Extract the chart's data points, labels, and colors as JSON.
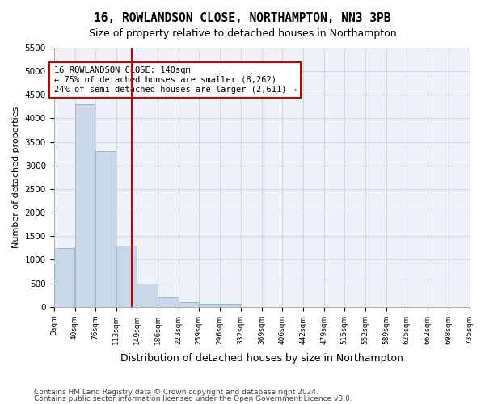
{
  "title": "16, ROWLANDSON CLOSE, NORTHAMPTON, NN3 3PB",
  "subtitle": "Size of property relative to detached houses in Northampton",
  "xlabel": "Distribution of detached houses by size in Northampton",
  "ylabel": "Number of detached properties",
  "footer_line1": "Contains HM Land Registry data © Crown copyright and database right 2024.",
  "footer_line2": "Contains public sector information licensed under the Open Government Licence v3.0.",
  "annotation_title": "16 ROWLANDSON CLOSE: 140sqm",
  "annotation_line1": "← 75% of detached houses are smaller (8,262)",
  "annotation_line2": "24% of semi-detached houses are larger (2,611) →",
  "property_size": 140,
  "bar_color": "#c8d8e8",
  "bar_edge_color": "#a0b8cc",
  "vline_color": "#cc0000",
  "annotation_box_color": "#cc0000",
  "categories": [
    "3sqm",
    "40sqm",
    "76sqm",
    "113sqm",
    "149sqm",
    "186sqm",
    "223sqm",
    "259sqm",
    "296sqm",
    "332sqm",
    "369sqm",
    "406sqm",
    "442sqm",
    "479sqm",
    "515sqm",
    "552sqm",
    "589sqm",
    "625sqm",
    "662sqm",
    "698sqm",
    "735sqm"
  ],
  "bin_edges": [
    3,
    40,
    76,
    113,
    149,
    186,
    223,
    259,
    296,
    332,
    369,
    406,
    442,
    479,
    515,
    552,
    589,
    625,
    662,
    698,
    735
  ],
  "bar_heights": [
    1250,
    4300,
    3300,
    1300,
    500,
    200,
    100,
    60,
    60,
    0,
    0,
    0,
    0,
    0,
    0,
    0,
    0,
    0,
    0,
    0
  ],
  "ylim": [
    0,
    5500
  ],
  "yticks": [
    0,
    500,
    1000,
    1500,
    2000,
    2500,
    3000,
    3500,
    4000,
    4500,
    5000,
    5500
  ],
  "grid_color": "#d0d8e0",
  "background_color": "#eef2f8"
}
